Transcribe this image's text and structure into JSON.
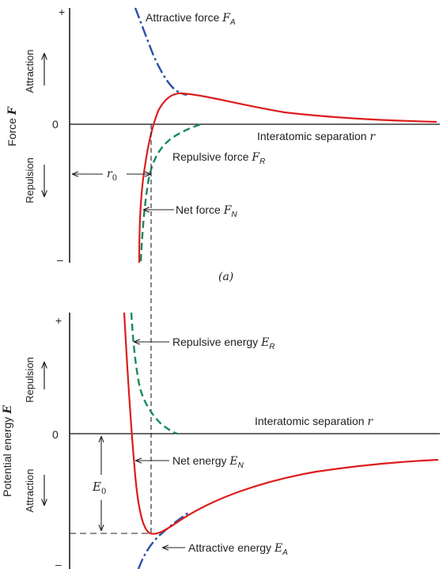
{
  "colors": {
    "net_curve": "#dd1c1c",
    "repulsive_curve": "#1a8a5a",
    "attractive_curve": "#2a4fa6",
    "axis": "#111111",
    "text": "#222222"
  },
  "panel_a": {
    "y_axis_label_prefix": "Force ",
    "y_axis_label_var": "F",
    "plus": "+",
    "minus": "–",
    "zero": "0",
    "attraction": "Attraction",
    "repulsion": "Repulsion",
    "x_axis_label_prefix": "Interatomic separation ",
    "x_axis_label_var": "r",
    "attractive_label_prefix": "Attractive force ",
    "attractive_label_var": "F",
    "attractive_label_sub": "A",
    "repulsive_label_prefix": "Repulsive force ",
    "repulsive_label_var": "F",
    "repulsive_label_sub": "R",
    "net_label_prefix": "Net force ",
    "net_label_var": "F",
    "net_label_sub": "N",
    "r0_var": "r",
    "r0_sub": "0",
    "caption": "(a)"
  },
  "panel_b": {
    "y_axis_label_prefix": "Potential energy ",
    "y_axis_label_var": "E",
    "plus": "+",
    "minus": "–",
    "zero": "0",
    "repulsion": "Repulsion",
    "attraction": "Attraction",
    "x_axis_label_prefix": "Interatomic separation ",
    "x_axis_label_var": "r",
    "repulsive_label_prefix": "Repulsive energy ",
    "repulsive_label_var": "E",
    "repulsive_label_sub": "R",
    "net_label_prefix": "Net energy ",
    "net_label_var": "E",
    "net_label_sub": "N",
    "attractive_label_prefix": "Attractive energy ",
    "attractive_label_var": "E",
    "attractive_label_sub": "A",
    "e0_var": "E",
    "e0_sub": "0"
  }
}
